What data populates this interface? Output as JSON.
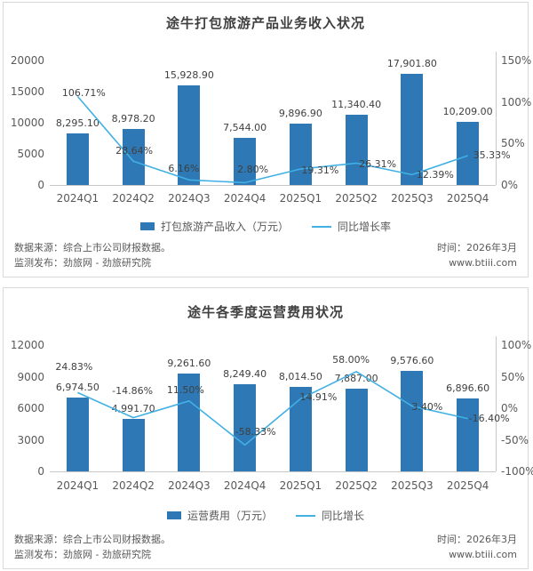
{
  "colors": {
    "bar": "#2d78b5",
    "line": "#41b0e4",
    "title_text": "#404040",
    "axis_text": "#595959",
    "data_label_text": "#404040",
    "footer_text": "#595959",
    "panel_border": "#d9d9d9",
    "axis_line": "#c9c9c9"
  },
  "footer": {
    "source": "数据来源：综合上市公司财报数据。",
    "publisher": "监测发布：劲旅网 - 劲旅研究院",
    "time": "时间：2026年3月",
    "website": "www.btiii.com"
  },
  "panels": [
    {
      "title": "途牛打包旅游产品业务收入状况",
      "legend": [
        {
          "label": "打包旅游产品收入（万元）",
          "type": "bar"
        },
        {
          "label": "同比增长率",
          "type": "line"
        }
      ]
    },
    {
      "title": "途牛各季度运营费用状况",
      "legend": [
        {
          "label": "运营费用（万元）",
          "type": "bar"
        },
        {
          "label": "同比增长",
          "type": "line"
        }
      ]
    }
  ],
  "chart_data": [
    {
      "type": "bar+line",
      "title": "途牛打包旅游产品业务收入状况",
      "categories": [
        "2024Q1",
        "2024Q2",
        "2024Q3",
        "2024Q4",
        "2025Q1",
        "2025Q2",
        "2025Q3",
        "2025Q4"
      ],
      "series": [
        {
          "name": "打包旅游产品收入（万元）",
          "type": "bar",
          "axis": "left",
          "values": [
            8295.1,
            8978.2,
            15928.9,
            7544.0,
            9896.9,
            11340.4,
            17901.8,
            10209.0
          ],
          "labels": [
            "8,295.10",
            "8,978.20",
            "15,928.90",
            "7,544.00",
            "9,896.90",
            "11,340.40",
            "17,901.80",
            "10,209.00"
          ]
        },
        {
          "name": "同比增长率",
          "type": "line",
          "axis": "right",
          "values": [
            106.71,
            28.64,
            6.16,
            2.8,
            19.31,
            26.31,
            12.39,
            35.33
          ],
          "labels": [
            "106.71%",
            "28.64%",
            "6.16%",
            "2.80%",
            "19.31%",
            "26.31%",
            "12.39%",
            "35.33%"
          ],
          "label_offsets": [
            [
              7,
              -3
            ],
            [
              1,
              -11
            ],
            [
              -6,
              -12
            ],
            [
              9,
              -14
            ],
            [
              22,
              2
            ],
            [
              24,
              2
            ],
            [
              26,
              1
            ],
            [
              27,
              0
            ]
          ]
        }
      ],
      "left_axis": {
        "min": 0,
        "max": 20000,
        "ticks": [
          "20000",
          "15000",
          "10000",
          "5000",
          "0"
        ]
      },
      "right_axis": {
        "min": 0,
        "max": 150,
        "ticks": [
          "150%",
          "100%",
          "50%",
          "0%"
        ]
      },
      "grid": false,
      "legend_position": "bottom"
    },
    {
      "type": "bar+line",
      "title": "途牛各季度运营费用状况",
      "categories": [
        "2024Q1",
        "2024Q2",
        "2024Q3",
        "2024Q4",
        "2025Q1",
        "2025Q2",
        "2025Q3",
        "2025Q4"
      ],
      "series": [
        {
          "name": "运营费用（万元）",
          "type": "bar",
          "axis": "left",
          "values": [
            6974.5,
            4991.7,
            9261.6,
            8249.4,
            8014.5,
            7887.0,
            9576.6,
            6896.6
          ],
          "labels": [
            "6,974.50",
            "4,991.70",
            "9,261.60",
            "8,249.40",
            "8,014.50",
            "7,887.00",
            "9,576.60",
            "6,896.60"
          ]
        },
        {
          "name": "同比增长",
          "type": "line",
          "axis": "right",
          "values": [
            24.83,
            -14.86,
            11.5,
            -58.33,
            14.91,
            58.0,
            3.4,
            -16.4
          ],
          "labels": [
            "24.83%",
            "-14.86%",
            "11.50%",
            "-58.33%",
            "14.91%",
            "58.00%",
            "3.40%",
            "-16.40%"
          ],
          "label_offsets": [
            [
              -4,
              -28
            ],
            [
              -1,
              -30
            ],
            [
              -4,
              -12
            ],
            [
              12,
              -14
            ],
            [
              20,
              -1
            ],
            [
              -6,
              -13
            ],
            [
              17,
              1
            ],
            [
              24,
              0
            ]
          ]
        }
      ],
      "left_axis": {
        "min": 0,
        "max": 12000,
        "ticks": [
          "12000",
          "9000",
          "6000",
          "3000",
          "0"
        ]
      },
      "right_axis": {
        "min": -100,
        "max": 100,
        "ticks": [
          "100%",
          "50%",
          "0%",
          "-50%",
          "-100%"
        ]
      },
      "grid": false,
      "legend_position": "bottom"
    }
  ]
}
